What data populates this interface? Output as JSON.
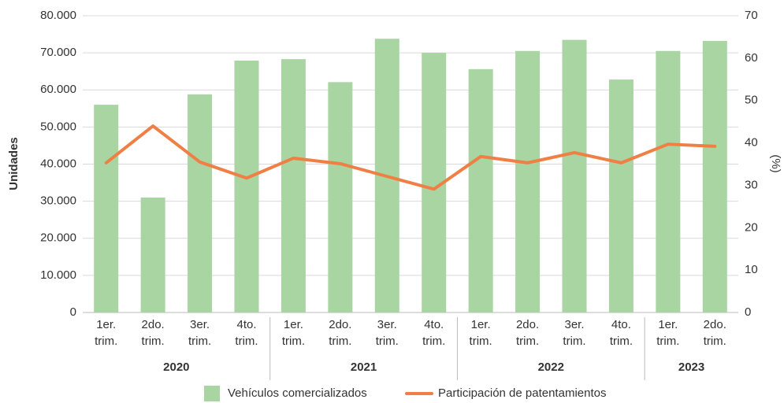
{
  "chart_data": {
    "type": "bar_line",
    "groups": [
      {
        "label": "2020",
        "categories": [
          [
            "1er.",
            "trim."
          ],
          [
            "2do.",
            "trim."
          ],
          [
            "3er.",
            "trim."
          ],
          [
            "4to.",
            "trim."
          ]
        ]
      },
      {
        "label": "2021",
        "categories": [
          [
            "1er.",
            "trim."
          ],
          [
            "2do.",
            "trim."
          ],
          [
            "3er.",
            "trim."
          ],
          [
            "4to.",
            "trim."
          ]
        ]
      },
      {
        "label": "2022",
        "categories": [
          [
            "1er.",
            "trim."
          ],
          [
            "2do.",
            "trim."
          ],
          [
            "3er.",
            "trim."
          ],
          [
            "4to.",
            "trim."
          ]
        ]
      },
      {
        "label": "2023",
        "categories": [
          [
            "1er.",
            "trim."
          ],
          [
            "2do.",
            "trim."
          ]
        ]
      }
    ],
    "series": [
      {
        "name": "Vehículos comercializados",
        "type": "bar",
        "color": "#a8d5a2",
        "values": [
          56000,
          31000,
          58800,
          67900,
          68300,
          62100,
          73800,
          70000,
          65600,
          70500,
          73500,
          62800,
          70500,
          73200
        ]
      },
      {
        "name": "Participación de patentamientos",
        "type": "line",
        "axis": "y2",
        "color": "#f07f45",
        "values": [
          35.3,
          44.0,
          35.5,
          31.7,
          36.4,
          35.1,
          32.1,
          29.1,
          36.8,
          35.3,
          37.7,
          35.3,
          39.7,
          39.2
        ]
      }
    ],
    "ylabel": "Unidades",
    "y2label": "(%)",
    "ylim": [
      0,
      80000
    ],
    "yticks": [
      0,
      {
        "value": 10000,
        "label": "10.000"
      },
      {
        "value": 20000,
        "label": "20.000"
      },
      {
        "value": 30000,
        "label": "30.000"
      },
      {
        "value": 40000,
        "label": "40.000"
      },
      {
        "value": 50000,
        "label": "50.000"
      },
      {
        "value": 60000,
        "label": "60.000"
      },
      {
        "value": 70000,
        "label": "70.000"
      },
      {
        "value": 80000,
        "label": "80.000"
      }
    ],
    "y2lim": [
      0,
      70
    ],
    "y2ticks": [
      0,
      10,
      20,
      30,
      40,
      50,
      60,
      70
    ],
    "grid": true,
    "legend": "bottom"
  }
}
